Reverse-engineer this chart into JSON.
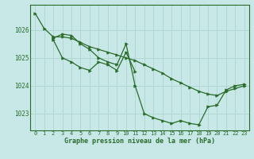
{
  "background_color": "#c8e8e8",
  "grid_color": "#b0d8d0",
  "line_color": "#2a6b2a",
  "title": "Graphe pression niveau de la mer (hPa)",
  "xlim": [
    -0.5,
    23.5
  ],
  "ylim": [
    1022.4,
    1026.9
  ],
  "yticks": [
    1023,
    1024,
    1025,
    1026
  ],
  "xticks": [
    0,
    1,
    2,
    3,
    4,
    5,
    6,
    7,
    8,
    9,
    10,
    11,
    12,
    13,
    14,
    15,
    16,
    17,
    18,
    19,
    20,
    21,
    22,
    23
  ],
  "series": [
    {
      "x": [
        0,
        1,
        2,
        3,
        4,
        5,
        6,
        7,
        8,
        9,
        10,
        11,
        12,
        13,
        14,
        15,
        16,
        17,
        18,
        19,
        20,
        21,
        22,
        23
      ],
      "y": [
        1026.6,
        1026.05,
        1025.75,
        1025.75,
        1025.7,
        1025.55,
        1025.4,
        1025.3,
        1025.2,
        1025.1,
        1025.0,
        1024.9,
        1024.75,
        1024.6,
        1024.45,
        1024.25,
        1024.1,
        1023.95,
        1023.8,
        1023.7,
        1023.65,
        1023.8,
        1023.9,
        1024.0
      ]
    },
    {
      "x": [
        2,
        3,
        4,
        5,
        6,
        7,
        8,
        9,
        10,
        11,
        12,
        13,
        14,
        15,
        16,
        17,
        18,
        19,
        20,
        21,
        22,
        23
      ],
      "y": [
        1025.7,
        1025.85,
        1025.8,
        1025.5,
        1025.3,
        1025.0,
        1024.85,
        1024.75,
        1025.5,
        1024.0,
        1023.0,
        1022.85,
        1022.75,
        1022.65,
        1022.75,
        1022.65,
        1022.6,
        1023.25,
        1023.3,
        1023.85,
        1024.0,
        1024.05
      ]
    },
    {
      "x": [
        2,
        3,
        4,
        5,
        6,
        7,
        8,
        9,
        10,
        11
      ],
      "y": [
        1025.65,
        1025.0,
        1024.85,
        1024.65,
        1024.55,
        1024.85,
        1024.75,
        1024.55,
        1025.2,
        1024.5
      ]
    }
  ]
}
